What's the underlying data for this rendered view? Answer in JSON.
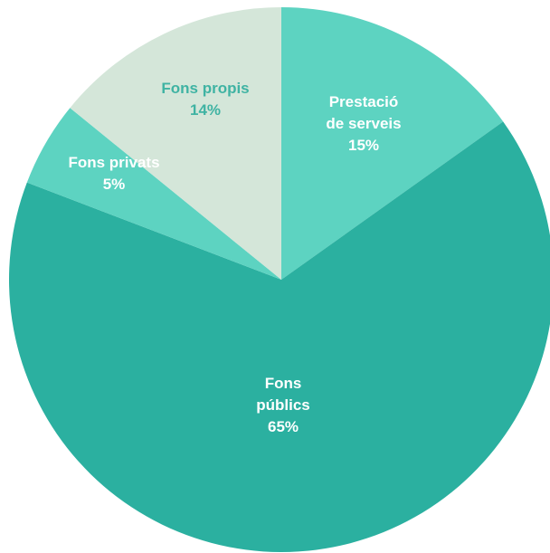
{
  "chart_data": {
    "type": "pie",
    "title": "",
    "start_angle_deg": 0,
    "direction": "clockwise",
    "slices": [
      {
        "label_lines": [
          "Prestació",
          "de serveis"
        ],
        "percent_label": "15%",
        "value": 15,
        "color": "#5dd3c1",
        "label_color": "#ffffff"
      },
      {
        "label_lines": [
          "Fons",
          "públics"
        ],
        "percent_label": "65%",
        "value": 65,
        "color": "#2bb0a0",
        "label_color": "#ffffff"
      },
      {
        "label_lines": [
          "Fons privats"
        ],
        "percent_label": "5%",
        "value": 5,
        "color": "#5dd3c1",
        "label_color": "#ffffff"
      },
      {
        "label_lines": [
          "Fons propis"
        ],
        "percent_label": "14%",
        "value": 14,
        "color": "#d4e6d9",
        "label_color": "#3fb3a3"
      }
    ]
  }
}
